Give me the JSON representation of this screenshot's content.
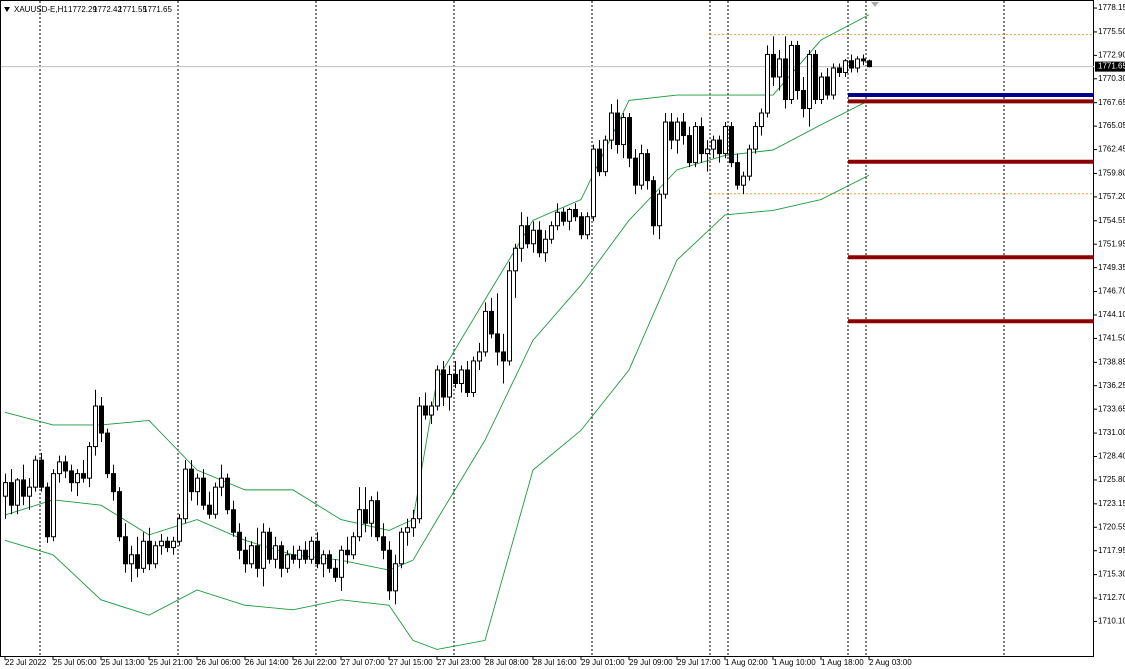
{
  "chart_data": {
    "type": "candlestick",
    "symbol": "XAUUSD-E,H1",
    "categories": [
      "22 Jul 2022",
      null,
      null,
      null,
      null,
      null,
      null,
      null,
      "25 Jul 05:00",
      null,
      null,
      null,
      null,
      null,
      null,
      null,
      "25 Jul 13:00",
      null,
      null,
      null,
      null,
      null,
      null,
      null,
      "25 Jul 21:00",
      null,
      null,
      null,
      null,
      null,
      null,
      null,
      "26 Jul 06:00",
      null,
      null,
      null,
      null,
      null,
      null,
      null,
      "26 Jul 14:00",
      null,
      null,
      null,
      null,
      null,
      null,
      null,
      "26 Jul 22:00",
      null,
      null,
      null,
      null,
      null,
      null,
      null,
      "27 Jul 07:00",
      null,
      null,
      null,
      null,
      null,
      null,
      null,
      "27 Jul 15:00",
      null,
      null,
      null,
      null,
      null,
      null,
      null,
      "27 Jul 23:00",
      null,
      null,
      null,
      null,
      null,
      null,
      null,
      "28 Jul 08:00",
      null,
      null,
      null,
      null,
      null,
      null,
      null,
      "28 Jul 16:00",
      null,
      null,
      null,
      null,
      null,
      null,
      null,
      "29 Jul 01:00",
      null,
      null,
      null,
      null,
      null,
      null,
      null,
      "29 Jul 09:00",
      null,
      null,
      null,
      null,
      null,
      null,
      null,
      "29 Jul 17:00",
      null,
      null,
      null,
      null,
      null,
      null,
      null,
      "1 Aug 02:00",
      null,
      null,
      null,
      null,
      null,
      null,
      null,
      "1 Aug 10:00",
      null,
      null,
      null,
      null,
      null,
      null,
      null,
      "1 Aug 18:00",
      null,
      null,
      null,
      null,
      null,
      null,
      null,
      "2 Aug 03:00"
    ],
    "open": [
      1724.0,
      1725.5,
      1723.0,
      1725.8,
      1724.0,
      1725.0,
      1728.0,
      1725.0,
      1719.5,
      1726.5,
      1727.8,
      1726.8,
      1725.5,
      1726.5,
      1726.0,
      1729.5,
      1734.0,
      1731.0,
      1726.5,
      1724.5,
      1719.5,
      1716.5,
      1717.5,
      1716.0,
      1719.0,
      1716.5,
      1718.5,
      1719.0,
      1718.3,
      1719.0,
      1721.5,
      1727.0,
      1724.5,
      1726.0,
      1723.0,
      1722.0,
      1725.0,
      1726.0,
      1722.5,
      1720.0,
      1718.0,
      1716.5,
      1718.5,
      1716.0,
      1720.0,
      1717.0,
      1718.5,
      1716.0,
      1717.5,
      1717.0,
      1718.0,
      1717.0,
      1719.0,
      1716.5,
      1717.5,
      1716.0,
      1715.0,
      1718.0,
      1717.5,
      1719.5,
      1722.5,
      1721.0,
      1723.5,
      1719.5,
      1718.0,
      1713.5,
      1716.5,
      1720.0,
      1720.5,
      1721.5,
      1734.0,
      1733.0,
      1734.0,
      1738.0,
      1735.0,
      1737.5,
      1736.5,
      1738.0,
      1735.5,
      1739.0,
      1740.0,
      1744.5,
      1742.0,
      1740.0,
      1739.0,
      1749.0,
      1751.5,
      1754.0,
      1752.0,
      1753.5,
      1751.0,
      1752.5,
      1754.0,
      1755.5,
      1754.5,
      1755.8,
      1755.0,
      1753.0,
      1755.0,
      1762.5,
      1760.0,
      1763.5,
      1766.5,
      1763.0,
      1766.0,
      1761.5,
      1758.5,
      1762.0,
      1759.0,
      1754.0,
      1757.5,
      1765.5,
      1763.5,
      1765.5,
      1764.0,
      1761.0,
      1765.0,
      1762.0,
      1762.5,
      1763.5,
      1762.0,
      1765.0,
      1761.0,
      1758.5,
      1759.5,
      1762.5,
      1765.0,
      1766.5,
      1773.0,
      1770.5,
      1772.5,
      1768.0,
      1774.0,
      1769.0,
      1767.0,
      1773.0,
      1768.0,
      1770.5,
      1768.5,
      1771.5,
      1771.0,
      1772.3,
      1771.5,
      1772.5,
      1772.29
    ],
    "high": [
      1726.5,
      1727.0,
      1726.0,
      1727.5,
      1726.0,
      1728.5,
      1728.8,
      1725.5,
      1727.0,
      1728.5,
      1728.5,
      1727.5,
      1727.0,
      1728.0,
      1730.0,
      1735.8,
      1735.0,
      1731.5,
      1727.5,
      1725.0,
      1721.0,
      1718.5,
      1719.5,
      1720.0,
      1720.5,
      1719.0,
      1719.8,
      1719.5,
      1719.5,
      1722.0,
      1728.0,
      1728.0,
      1726.5,
      1727.0,
      1724.5,
      1725.5,
      1727.5,
      1726.5,
      1723.5,
      1721.0,
      1719.5,
      1719.0,
      1720.5,
      1721.0,
      1720.5,
      1719.5,
      1719.0,
      1718.0,
      1718.5,
      1718.5,
      1719.0,
      1719.5,
      1720.0,
      1718.0,
      1718.0,
      1717.0,
      1718.5,
      1719.5,
      1720.0,
      1725.0,
      1725.0,
      1724.0,
      1724.5,
      1721.0,
      1719.0,
      1717.5,
      1720.5,
      1721.5,
      1722.5,
      1735.0,
      1735.5,
      1734.5,
      1738.5,
      1739.0,
      1738.5,
      1739.0,
      1738.5,
      1739.0,
      1739.5,
      1741.0,
      1745.5,
      1746.0,
      1746.5,
      1742.0,
      1750.0,
      1752.0,
      1755.5,
      1755.0,
      1754.5,
      1754.5,
      1753.5,
      1754.5,
      1756.5,
      1756.0,
      1756.0,
      1756.5,
      1755.5,
      1755.5,
      1763.0,
      1763.5,
      1764.0,
      1767.5,
      1768.0,
      1766.5,
      1766.5,
      1762.5,
      1763.0,
      1762.5,
      1759.5,
      1758.0,
      1766.5,
      1766.5,
      1766.0,
      1766.5,
      1765.0,
      1765.5,
      1766.0,
      1763.5,
      1764.0,
      1764.0,
      1765.5,
      1765.5,
      1762.0,
      1760.0,
      1763.0,
      1765.5,
      1767.0,
      1774.0,
      1775.0,
      1773.5,
      1775.0,
      1774.5,
      1774.5,
      1770.5,
      1773.5,
      1773.5,
      1771.0,
      1771.5,
      1772.0,
      1772.0,
      1772.5,
      1773.0,
      1772.8,
      1773.0,
      1772.42
    ],
    "low": [
      1721.5,
      1722.0,
      1722.0,
      1723.0,
      1722.5,
      1724.5,
      1724.5,
      1718.8,
      1719.0,
      1725.5,
      1726.0,
      1724.5,
      1724.0,
      1725.5,
      1725.0,
      1728.5,
      1730.0,
      1726.0,
      1723.5,
      1719.0,
      1715.5,
      1714.5,
      1715.0,
      1715.5,
      1715.8,
      1716.0,
      1717.5,
      1717.8,
      1717.5,
      1718.5,
      1721.0,
      1723.5,
      1723.0,
      1722.5,
      1721.5,
      1721.5,
      1724.0,
      1722.0,
      1719.5,
      1717.0,
      1715.5,
      1716.0,
      1715.0,
      1714.0,
      1716.5,
      1716.0,
      1715.0,
      1715.5,
      1716.5,
      1716.0,
      1716.5,
      1716.5,
      1716.0,
      1715.0,
      1715.5,
      1714.5,
      1713.5,
      1716.5,
      1717.0,
      1719.0,
      1720.0,
      1719.5,
      1719.0,
      1717.0,
      1712.5,
      1712.0,
      1716.0,
      1718.5,
      1719.5,
      1721.0,
      1732.5,
      1732.0,
      1733.5,
      1734.0,
      1733.5,
      1736.0,
      1735.5,
      1735.0,
      1735.0,
      1738.0,
      1739.5,
      1741.5,
      1738.5,
      1736.5,
      1738.5,
      1746.0,
      1750.0,
      1751.5,
      1751.0,
      1750.5,
      1750.0,
      1752.0,
      1753.5,
      1754.0,
      1753.5,
      1754.5,
      1752.5,
      1752.5,
      1754.5,
      1759.5,
      1759.5,
      1762.5,
      1762.0,
      1761.5,
      1760.5,
      1757.5,
      1758.0,
      1758.0,
      1753.0,
      1752.5,
      1757.0,
      1762.5,
      1762.0,
      1763.0,
      1760.5,
      1760.5,
      1761.0,
      1760.0,
      1761.5,
      1761.0,
      1761.5,
      1760.5,
      1758.0,
      1757.5,
      1759.0,
      1762.0,
      1764.0,
      1766.0,
      1769.5,
      1769.0,
      1767.0,
      1767.5,
      1768.0,
      1766.0,
      1765.0,
      1767.5,
      1767.5,
      1768.0,
      1768.0,
      1770.5,
      1770.5,
      1771.0,
      1771.0,
      1771.8,
      1771.55
    ],
    "close": [
      1725.5,
      1723.0,
      1725.8,
      1724.0,
      1725.0,
      1728.0,
      1725.0,
      1719.5,
      1726.5,
      1727.8,
      1726.8,
      1725.5,
      1726.5,
      1726.0,
      1729.5,
      1734.0,
      1731.0,
      1726.5,
      1724.5,
      1719.5,
      1716.5,
      1717.5,
      1716.0,
      1719.0,
      1716.5,
      1718.5,
      1719.0,
      1718.3,
      1719.0,
      1721.5,
      1727.0,
      1724.5,
      1726.0,
      1723.0,
      1722.0,
      1725.0,
      1726.0,
      1722.5,
      1720.0,
      1718.0,
      1716.5,
      1718.5,
      1716.0,
      1720.0,
      1717.0,
      1718.5,
      1716.0,
      1717.5,
      1717.0,
      1718.0,
      1717.0,
      1719.0,
      1716.5,
      1717.5,
      1716.0,
      1715.0,
      1718.0,
      1717.5,
      1719.5,
      1722.5,
      1721.0,
      1723.5,
      1719.5,
      1718.0,
      1713.5,
      1716.5,
      1720.0,
      1720.5,
      1721.5,
      1734.0,
      1733.0,
      1734.0,
      1738.0,
      1735.0,
      1737.5,
      1736.5,
      1738.0,
      1735.5,
      1739.0,
      1740.0,
      1744.5,
      1742.0,
      1740.0,
      1739.0,
      1749.0,
      1751.5,
      1754.0,
      1752.0,
      1753.5,
      1751.0,
      1752.5,
      1754.0,
      1755.5,
      1754.5,
      1755.8,
      1755.0,
      1753.0,
      1755.0,
      1762.5,
      1760.0,
      1763.5,
      1766.5,
      1763.0,
      1766.0,
      1761.5,
      1758.5,
      1762.0,
      1759.0,
      1754.0,
      1757.5,
      1765.5,
      1763.5,
      1765.5,
      1764.0,
      1761.0,
      1765.0,
      1762.0,
      1762.5,
      1763.5,
      1762.0,
      1765.0,
      1761.0,
      1758.5,
      1759.5,
      1762.5,
      1765.0,
      1766.5,
      1773.0,
      1770.5,
      1772.5,
      1768.0,
      1774.0,
      1769.0,
      1767.0,
      1773.0,
      1768.0,
      1770.5,
      1768.5,
      1771.5,
      1771.0,
      1772.3,
      1771.5,
      1772.5,
      1772.29,
      1771.65
    ],
    "bands": {
      "color": "#1a9a3c",
      "x": [
        0,
        8,
        16,
        24,
        32,
        40,
        48,
        56,
        64,
        68,
        72,
        80,
        88,
        96,
        104,
        112,
        120,
        128,
        136,
        144
      ],
      "upper": [
        1733.3,
        1731.9,
        1731.9,
        1732.4,
        1726.9,
        1724.7,
        1724.7,
        1721.4,
        1720.2,
        1721.4,
        1736.9,
        1745.8,
        1754.6,
        1756.9,
        1767.9,
        1768.5,
        1768.5,
        1768.5,
        1774.6,
        1777.4
      ],
      "middle": [
        1721.9,
        1723.6,
        1723.0,
        1719.7,
        1721.4,
        1719.1,
        1717.5,
        1716.9,
        1715.8,
        1716.9,
        1721.4,
        1730.2,
        1741.3,
        1747.4,
        1754.6,
        1760.2,
        1761.8,
        1762.4,
        1765.2,
        1767.9
      ],
      "lower": [
        1719.1,
        1717.5,
        1712.5,
        1710.8,
        1713.6,
        1711.9,
        1711.4,
        1712.5,
        1711.9,
        1708.0,
        1707.0,
        1708.0,
        1726.9,
        1731.3,
        1738.0,
        1750.2,
        1755.2,
        1755.7,
        1756.9,
        1759.6
      ]
    },
    "levels": [
      {
        "value": 1768.5,
        "color": "#00008b"
      },
      {
        "value": 1767.8,
        "color": "#8b0000"
      },
      {
        "value": 1761.1,
        "color": "#8b0000"
      },
      {
        "value": 1750.5,
        "color": "#8b0000"
      },
      {
        "value": 1743.4,
        "color": "#8b0000"
      }
    ],
    "dotted_levels": {
      "color": "#f0a030",
      "values": [
        1775.2,
        1757.55
      ]
    },
    "up_color": "#ffffff",
    "down_color": "#000000",
    "ylim": [
      1706.16,
      1779.04
    ],
    "yticks": [
      1778.15,
      {
        "value": 1775.5,
        "label": "1775.50"
      },
      {
        "value": 1772.9,
        "label": "1772.90"
      },
      {
        "value": 1770.3,
        "label": "1770.30"
      },
      1767.65,
      1765.05,
      1762.45,
      {
        "value": 1759.8,
        "label": "1759.80"
      },
      {
        "value": 1757.2,
        "label": "1757.20"
      },
      1754.55,
      1751.95,
      1749.35,
      {
        "value": 1746.7,
        "label": "1746.70"
      },
      {
        "value": 1744.1,
        "label": "1744.10"
      },
      {
        "value": 1741.5,
        "label": "1741.50"
      },
      1738.85,
      1736.25,
      1733.65,
      {
        "value": 1731,
        "label": "1731.00"
      },
      {
        "value": 1728.4,
        "label": "1728.40"
      },
      {
        "value": 1725.8,
        "label": "1725.80"
      },
      1723.15,
      1720.55,
      1717.95,
      {
        "value": 1715.3,
        "label": "1715.30"
      },
      {
        "value": 1712.7,
        "label": "1712.70"
      },
      {
        "value": 1710.1,
        "label": "1710.10"
      }
    ]
  }
}
